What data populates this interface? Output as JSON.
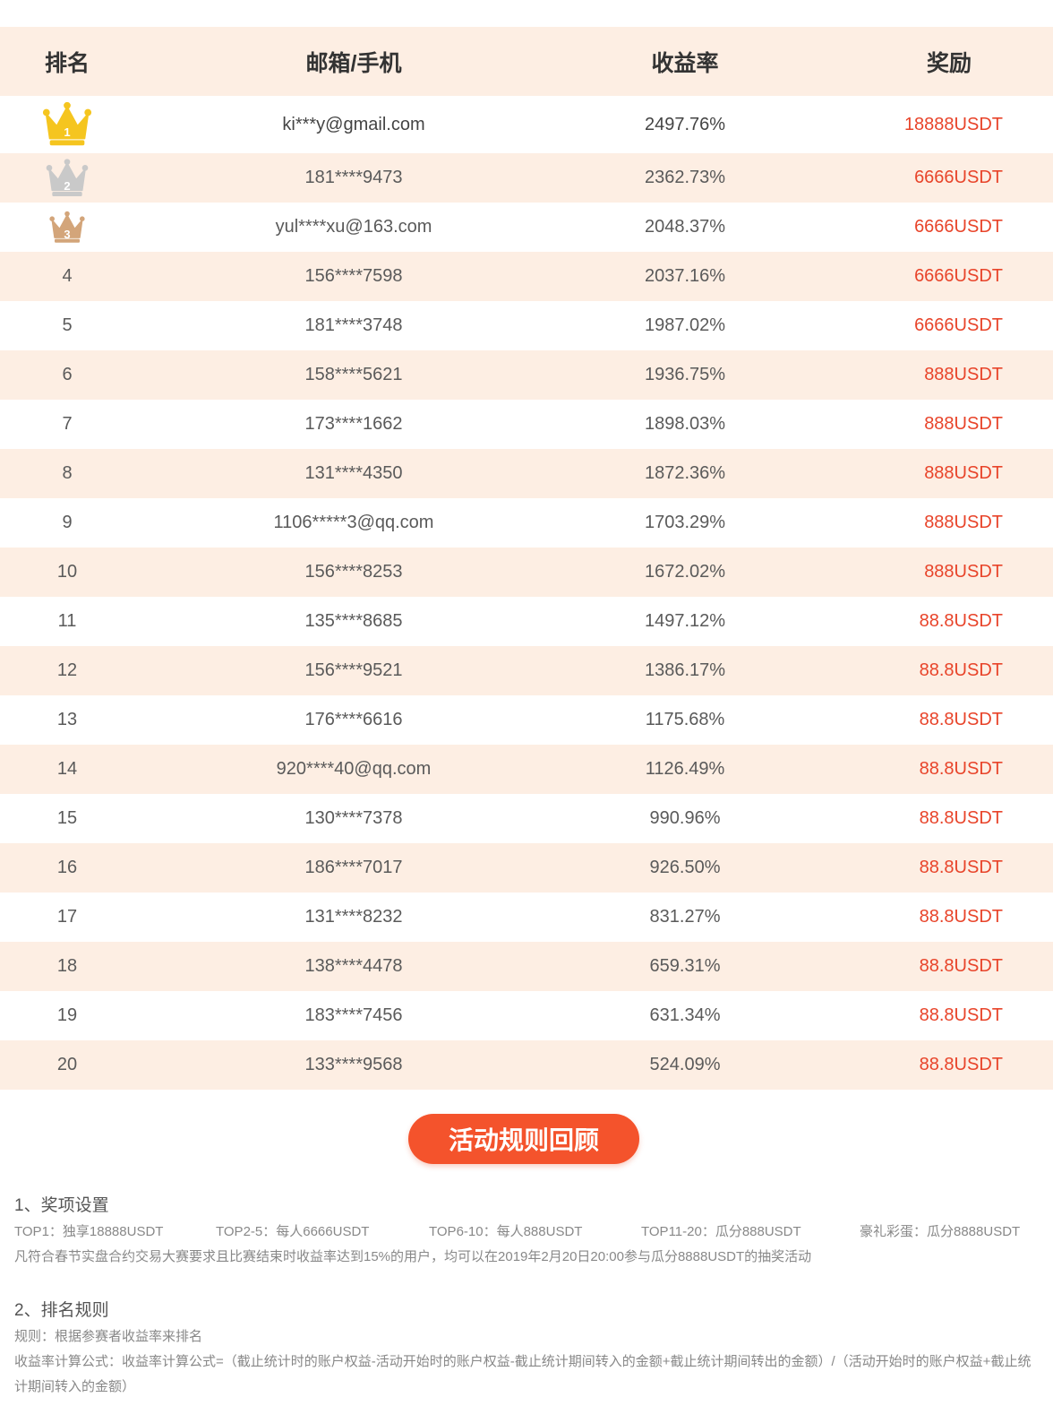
{
  "table": {
    "headers": {
      "rank": "排名",
      "user": "邮箱/手机",
      "rate": "收益率",
      "reward": "奖励"
    },
    "rows": [
      {
        "rank": "1",
        "user": "ki***y@gmail.com",
        "rate": "2497.76%",
        "reward": "18888USDT",
        "crown": "gold-crown-icon"
      },
      {
        "rank": "2",
        "user": "181****9473",
        "rate": "2362.73%",
        "reward": "6666USDT",
        "crown": "silver-crown-icon"
      },
      {
        "rank": "3",
        "user": "yul****xu@163.com",
        "rate": "2048.37%",
        "reward": "6666USDT",
        "crown": "bronze-crown-icon"
      },
      {
        "rank": "4",
        "user": "156****7598",
        "rate": "2037.16%",
        "reward": "6666USDT"
      },
      {
        "rank": "5",
        "user": "181****3748",
        "rate": "1987.02%",
        "reward": "6666USDT"
      },
      {
        "rank": "6",
        "user": "158****5621",
        "rate": "1936.75%",
        "reward": "888USDT"
      },
      {
        "rank": "7",
        "user": "173****1662",
        "rate": "1898.03%",
        "reward": "888USDT"
      },
      {
        "rank": "8",
        "user": "131****4350",
        "rate": "1872.36%",
        "reward": "888USDT"
      },
      {
        "rank": "9",
        "user": "1106*****3@qq.com",
        "rate": "1703.29%",
        "reward": "888USDT"
      },
      {
        "rank": "10",
        "user": "156****8253",
        "rate": "1672.02%",
        "reward": "888USDT"
      },
      {
        "rank": "11",
        "user": "135****8685",
        "rate": "1497.12%",
        "reward": "88.8USDT"
      },
      {
        "rank": "12",
        "user": "156****9521",
        "rate": "1386.17%",
        "reward": "88.8USDT"
      },
      {
        "rank": "13",
        "user": "176****6616",
        "rate": "1175.68%",
        "reward": "88.8USDT"
      },
      {
        "rank": "14",
        "user": "920****40@qq.com",
        "rate": "1126.49%",
        "reward": "88.8USDT"
      },
      {
        "rank": "15",
        "user": "130****7378",
        "rate": "990.96%",
        "reward": "88.8USDT"
      },
      {
        "rank": "16",
        "user": "186****7017",
        "rate": "926.50%",
        "reward": "88.8USDT"
      },
      {
        "rank": "17",
        "user": "131****8232",
        "rate": "831.27%",
        "reward": "88.8USDT"
      },
      {
        "rank": "18",
        "user": "138****4478",
        "rate": "659.31%",
        "reward": "88.8USDT"
      },
      {
        "rank": "19",
        "user": "183****7456",
        "rate": "631.34%",
        "reward": "88.8USDT"
      },
      {
        "rank": "20",
        "user": "133****9568",
        "rate": "524.09%",
        "reward": "88.8USDT"
      }
    ]
  },
  "button": {
    "label": "活动规则回顾"
  },
  "rules": {
    "section1": {
      "title": "1、奖项设置",
      "prizes": [
        "TOP1：独享18888USDT",
        "TOP2-5：每人6666USDT",
        "TOP6-10：每人888USDT",
        "TOP11-20：瓜分888USDT",
        "豪礼彩蛋：瓜分8888USDT"
      ],
      "note": "凡符合春节实盘合约交易大赛要求且比赛结束时收益率达到15%的用户，均可以在2019年2月20日20:00参与瓜分8888USDT的抽奖活动"
    },
    "section2": {
      "title": "2、排名规则",
      "rule": "规则：根据参赛者收益率来排名",
      "formula": "收益率计算公式：收益率计算公式=（截止统计时的账户权益-活动开始时的账户权益-截止统计期间转入的金额+截止统计期间转出的金额）/（活动开始时的账户权益+截止统计期间转入的金额）"
    }
  },
  "colors": {
    "accent": "#f4532c",
    "reward_text": "#e8442a",
    "row_alt": "#fdeee3",
    "gold": "#f5c51f",
    "silver": "#c9c9c9",
    "bronze": "#d3a57a"
  }
}
